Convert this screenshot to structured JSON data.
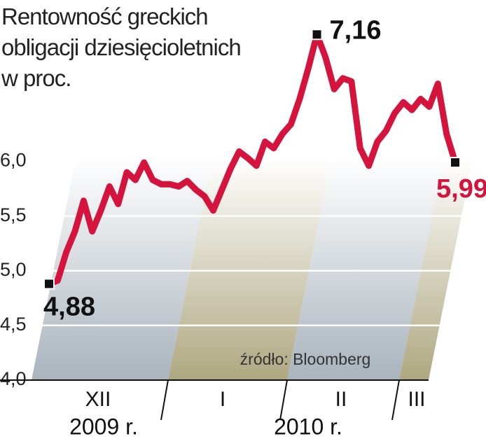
{
  "chart_data": {
    "type": "line",
    "title": "Rentowność greckich\nobligacji dziesięcioletnich\nw proc.",
    "source": "źródło: Bloomberg",
    "months": [
      "XII",
      "I",
      "II",
      "III"
    ],
    "years": [
      "2009 r.",
      "2010 r."
    ],
    "color": "#d4143c",
    "ylim": [
      4.0,
      7.2
    ],
    "yticks": [
      {
        "value": 4.0,
        "label": "4,0"
      },
      {
        "value": 4.5,
        "label": "4,5"
      },
      {
        "value": 5.0,
        "label": "5,0"
      },
      {
        "value": 5.5,
        "label": "5,5"
      },
      {
        "value": 6.0,
        "label": "6,0"
      }
    ],
    "grid": true,
    "values": [
      4.88,
      4.91,
      5.17,
      5.36,
      5.64,
      5.36,
      5.55,
      5.77,
      5.61,
      5.9,
      5.83,
      5.99,
      5.83,
      5.79,
      5.79,
      5.77,
      5.82,
      5.74,
      5.68,
      5.55,
      5.74,
      5.93,
      6.09,
      6.03,
      5.96,
      6.18,
      6.12,
      6.25,
      6.34,
      6.57,
      6.85,
      7.16,
      6.95,
      6.66,
      6.76,
      6.73,
      6.12,
      5.96,
      6.18,
      6.28,
      6.44,
      6.54,
      6.47,
      6.57,
      6.5,
      6.71,
      6.25,
      5.99
    ],
    "value_labels": [
      "4,88",
      null,
      null,
      null,
      null,
      null,
      null,
      null,
      null,
      null,
      null,
      null,
      null,
      null,
      null,
      null,
      null,
      null,
      null,
      null,
      null,
      null,
      null,
      null,
      null,
      null,
      null,
      null,
      null,
      null,
      null,
      "7,16",
      null,
      null,
      null,
      null,
      null,
      null,
      null,
      null,
      null,
      null,
      null,
      null,
      null,
      null,
      null,
      "5,99"
    ]
  }
}
